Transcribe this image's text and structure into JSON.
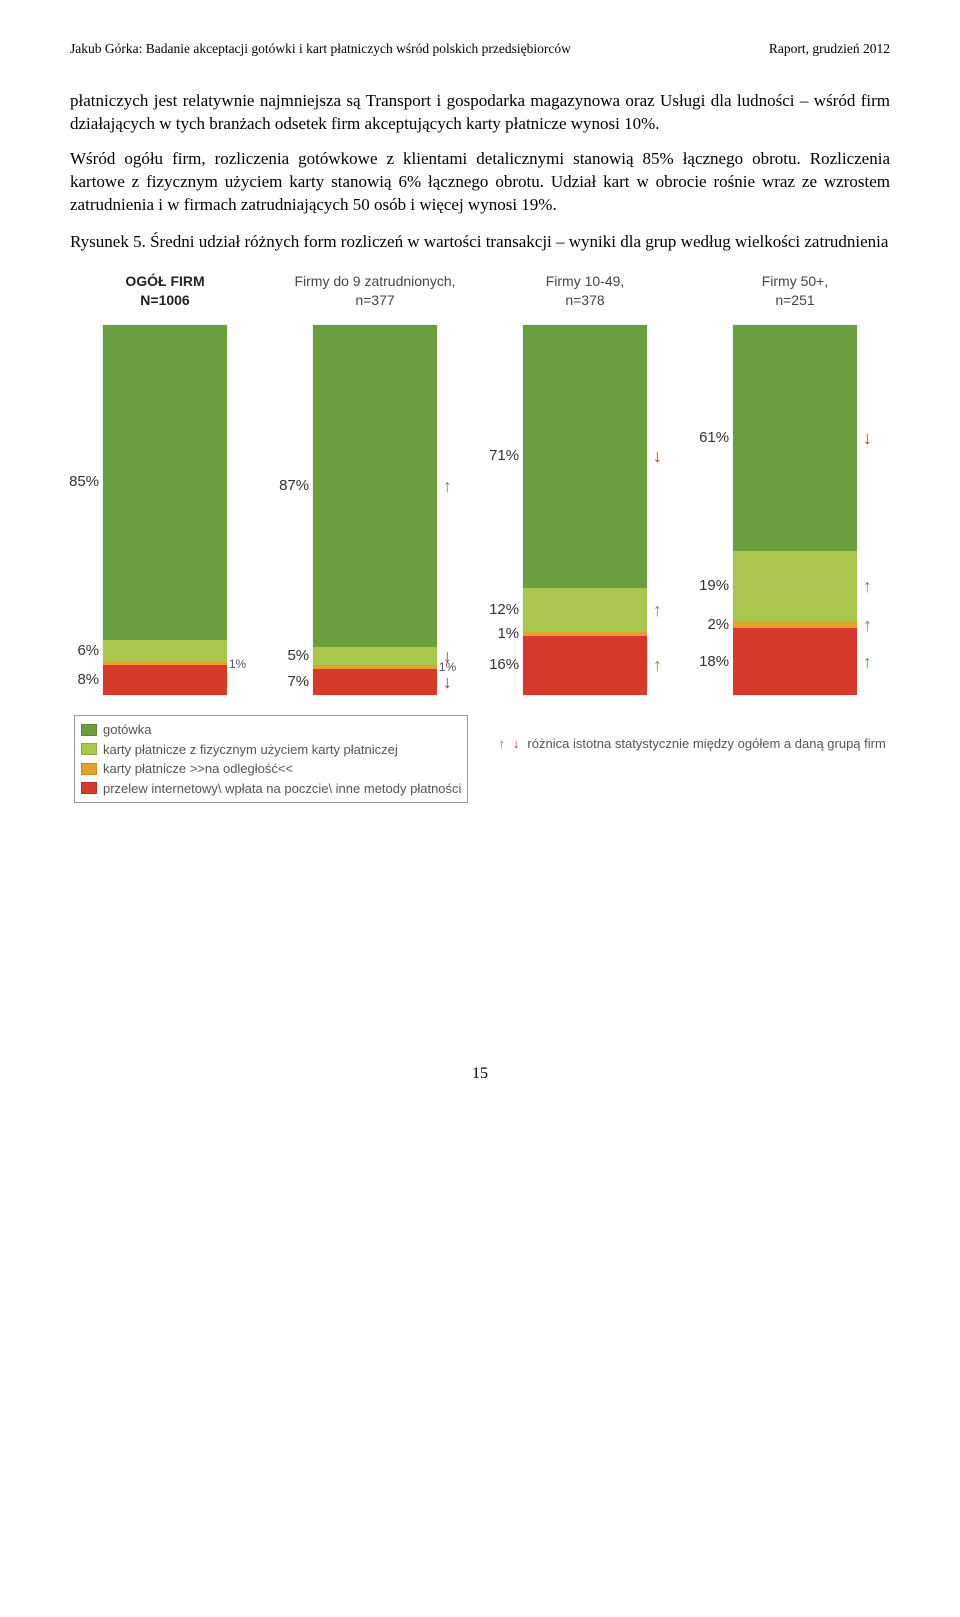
{
  "header": {
    "left": "Jakub Górka: Badanie akceptacji gotówki i kart płatniczych wśród polskich przedsiębiorców",
    "right": "Raport, grudzień 2012"
  },
  "paragraphs": {
    "p1": "płatniczych jest relatywnie najmniejsza są Transport i gospodarka magazynowa oraz Usługi dla ludności – wśród firm działających w tych branżach odsetek firm akceptujących karty płatnicze wynosi 10%.",
    "p2": "Wśród ogółu firm, rozliczenia gotówkowe z klientami detalicznymi stanowią 85% łącznego obrotu. Rozliczenia kartowe z fizycznym użyciem karty stanowią 6% łącznego obrotu. Udział kart w obrocie rośnie wraz ze wzrostem zatrudnienia i w firmach zatrudniających 50 osób i więcej wynosi 19%.",
    "caption": "Rysunek 5. Średni udział różnych form rozliczeń w wartości transakcji – wyniki dla grup według wielkości zatrudnienia"
  },
  "chart": {
    "colors": {
      "cash": "#6a9e3e",
      "card_physical": "#a9c74d",
      "card_remote": "#e4a12b",
      "transfer": "#d63a2a",
      "arrow_up": "#5a9e3e",
      "arrow_down": "#d22"
    },
    "columns": [
      {
        "title_line1": "OGÓŁ FIRM",
        "title_line2": "N=1006",
        "bold": true,
        "segments": [
          {
            "key": "cash",
            "value": 85,
            "label": "85%",
            "arrow": null
          },
          {
            "key": "card_physical",
            "value": 6,
            "label": "6%",
            "arrow": null
          },
          {
            "key": "card_remote",
            "value": 1,
            "label": "1%",
            "arrow": null,
            "micro": true
          },
          {
            "key": "transfer",
            "value": 8,
            "label": "8%",
            "arrow": null
          }
        ]
      },
      {
        "title_line1": "Firmy do 9 zatrudnionych,",
        "title_line2": "n=377",
        "bold": false,
        "segments": [
          {
            "key": "cash",
            "value": 87,
            "label": "87%",
            "arrow": "up"
          },
          {
            "key": "card_physical",
            "value": 5,
            "label": "5%",
            "arrow": "down"
          },
          {
            "key": "card_remote",
            "value": 1,
            "label": "1%",
            "arrow": null,
            "micro": true
          },
          {
            "key": "transfer",
            "value": 7,
            "label": "7%",
            "arrow": "down"
          }
        ]
      },
      {
        "title_line1": "Firmy 10-49,",
        "title_line2": "n=378",
        "bold": false,
        "segments": [
          {
            "key": "cash",
            "value": 71,
            "label": "71%",
            "arrow": "down"
          },
          {
            "key": "card_physical",
            "value": 12,
            "label": "12%",
            "arrow": "up"
          },
          {
            "key": "card_remote",
            "value": 1,
            "label": "1%",
            "arrow": null
          },
          {
            "key": "transfer",
            "value": 16,
            "label": "16%",
            "arrow": "up"
          }
        ]
      },
      {
        "title_line1": "Firmy 50+,",
        "title_line2": "n=251",
        "bold": false,
        "segments": [
          {
            "key": "cash",
            "value": 61,
            "label": "61%",
            "arrow": "down"
          },
          {
            "key": "card_physical",
            "value": 19,
            "label": "19%",
            "arrow": "up"
          },
          {
            "key": "card_remote",
            "value": 2,
            "label": "2%",
            "arrow": "up"
          },
          {
            "key": "transfer",
            "value": 18,
            "label": "18%",
            "arrow": "up"
          }
        ]
      }
    ],
    "legend": {
      "items": [
        {
          "color_key": "cash",
          "label": "gotówka"
        },
        {
          "color_key": "card_physical",
          "label": "karty płatnicze z fizycznym użyciem karty płatniczej"
        },
        {
          "color_key": "card_remote",
          "label": "karty płatnicze >>na odległość<<"
        },
        {
          "color_key": "transfer",
          "label": "przelew internetowy\\ wpłata na poczcie\\ inne metody płatności"
        }
      ],
      "right_note": "różnica istotna statystycznie między ogółem a daną grupą firm"
    }
  },
  "page_number": "15"
}
